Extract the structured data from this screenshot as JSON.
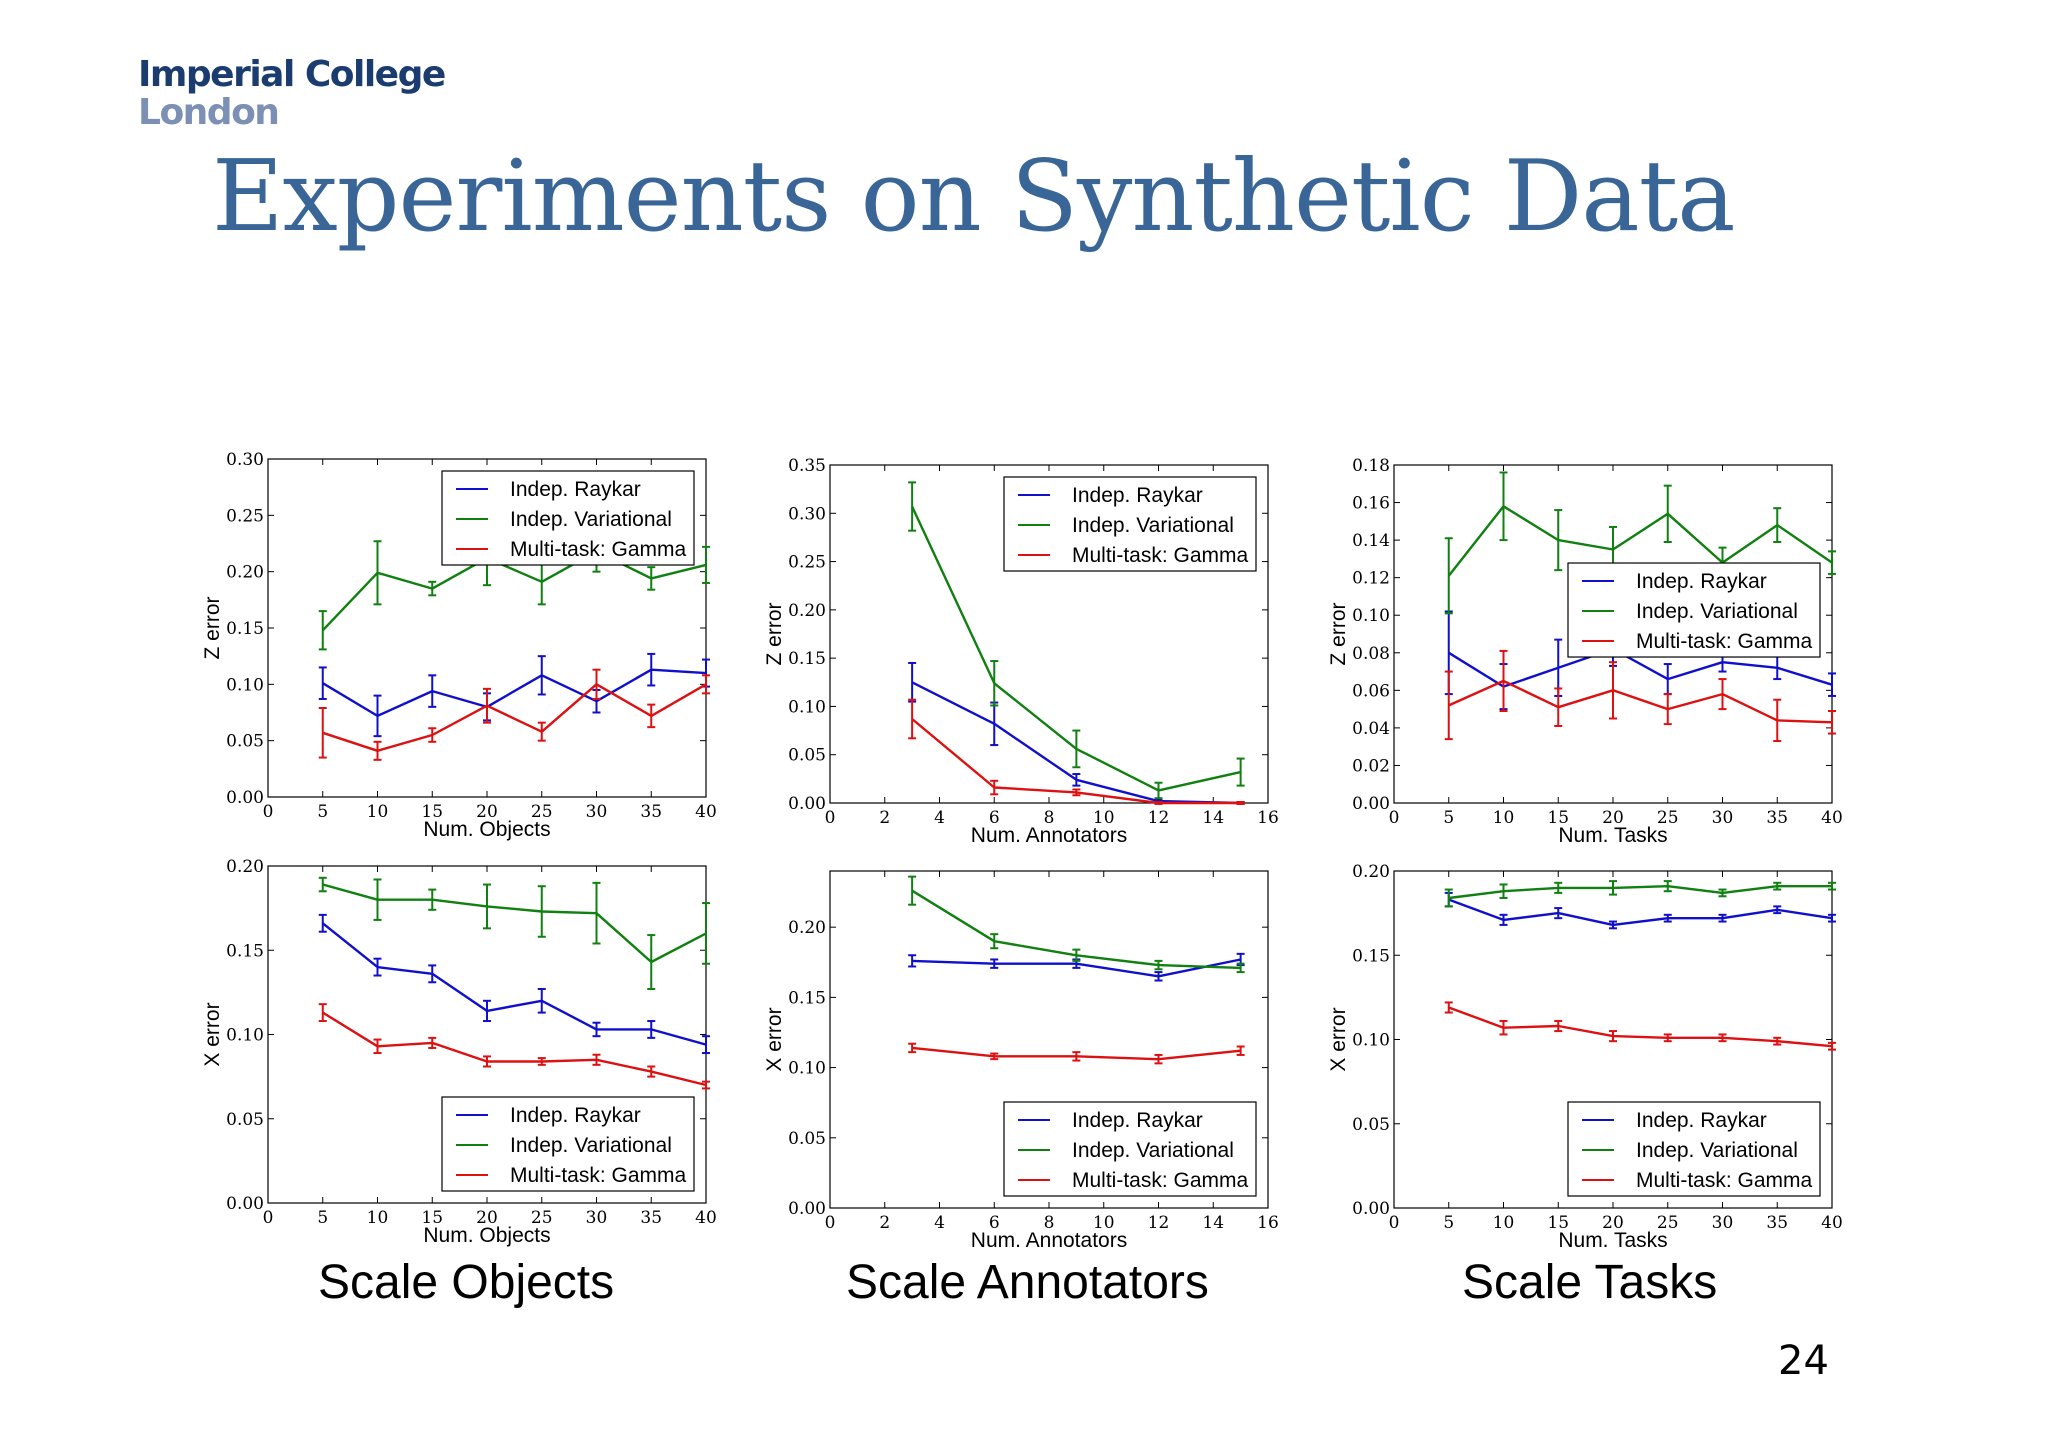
{
  "logo": {
    "line1": "Imperial College",
    "line2": "London"
  },
  "slide": {
    "title": "Experiments on Synthetic Data",
    "page_number": "24"
  },
  "captions": [
    "Scale Objects",
    "Scale Annotators",
    "Scale Tasks"
  ],
  "colors": {
    "raykar": "#1010cc",
    "variational": "#108010",
    "gamma": "#dd1111"
  },
  "chart_data": [
    {
      "type": "line",
      "xlabel": "Num. Objects",
      "ylabel": "Z error",
      "xlim": [
        0,
        40
      ],
      "ylim": [
        0,
        0.3
      ],
      "xticks": [
        "0",
        "5",
        "10",
        "15",
        "20",
        "25",
        "30",
        "35",
        "40"
      ],
      "yticks": [
        "0.00",
        "0.05",
        "0.10",
        "0.15",
        "0.20",
        "0.25",
        "0.30"
      ],
      "legend": "upper-right",
      "x": [
        5,
        10,
        15,
        20,
        25,
        30,
        35,
        40
      ],
      "series": [
        {
          "name": "Indep. Raykar",
          "values": [
            0.101,
            0.072,
            0.094,
            0.08,
            0.108,
            0.085,
            0.113,
            0.11
          ],
          "errors": [
            0.014,
            0.018,
            0.014,
            0.012,
            0.017,
            0.01,
            0.014,
            0.012
          ]
        },
        {
          "name": "Indep. Variational",
          "values": [
            0.148,
            0.199,
            0.185,
            0.212,
            0.191,
            0.218,
            0.194,
            0.206
          ],
          "errors": [
            0.017,
            0.028,
            0.006,
            0.024,
            0.02,
            0.018,
            0.01,
            0.016
          ]
        },
        {
          "name": "Multi-task: Gamma",
          "values": [
            0.057,
            0.041,
            0.055,
            0.081,
            0.058,
            0.1,
            0.072,
            0.1
          ],
          "errors": [
            0.022,
            0.008,
            0.006,
            0.015,
            0.008,
            0.013,
            0.01,
            0.008
          ]
        }
      ]
    },
    {
      "type": "line",
      "xlabel": "Num. Annotators",
      "ylabel": "Z error",
      "xlim": [
        0,
        16
      ],
      "ylim": [
        0,
        0.35
      ],
      "xticks": [
        "0",
        "2",
        "4",
        "6",
        "8",
        "10",
        "12",
        "14",
        "16"
      ],
      "yticks": [
        "0.00",
        "0.05",
        "0.10",
        "0.15",
        "0.20",
        "0.25",
        "0.30",
        "0.35"
      ],
      "legend": "upper-right",
      "x": [
        3,
        6,
        9,
        12,
        15
      ],
      "series": [
        {
          "name": "Indep. Raykar",
          "values": [
            0.125,
            0.082,
            0.024,
            0.002,
            0.0
          ],
          "errors": [
            0.02,
            0.022,
            0.006,
            0.002,
            0.001
          ]
        },
        {
          "name": "Indep. Variational",
          "values": [
            0.307,
            0.124,
            0.056,
            0.013,
            0.032
          ],
          "errors": [
            0.025,
            0.023,
            0.019,
            0.008,
            0.014
          ]
        },
        {
          "name": "Multi-task: Gamma",
          "values": [
            0.087,
            0.016,
            0.011,
            0.0,
            0.0
          ],
          "errors": [
            0.02,
            0.007,
            0.003,
            0.001,
            0.001
          ]
        }
      ]
    },
    {
      "type": "line",
      "xlabel": "Num. Tasks",
      "ylabel": "Z error",
      "xlim": [
        0,
        40
      ],
      "ylim": [
        0,
        0.18
      ],
      "xticks": [
        "0",
        "5",
        "10",
        "15",
        "20",
        "25",
        "30",
        "35",
        "40"
      ],
      "yticks": [
        "0.00",
        "0.02",
        "0.04",
        "0.06",
        "0.08",
        "0.10",
        "0.12",
        "0.14",
        "0.16",
        "0.18"
      ],
      "legend": "center-right",
      "x": [
        5,
        10,
        15,
        20,
        25,
        30,
        35,
        40
      ],
      "series": [
        {
          "name": "Indep. Raykar",
          "values": [
            0.08,
            0.062,
            0.072,
            0.082,
            0.066,
            0.075,
            0.072,
            0.063
          ],
          "errors": [
            0.022,
            0.012,
            0.015,
            0.009,
            0.008,
            0.005,
            0.006,
            0.006
          ]
        },
        {
          "name": "Indep. Variational",
          "values": [
            0.121,
            0.158,
            0.14,
            0.135,
            0.154,
            0.128,
            0.148,
            0.128
          ],
          "errors": [
            0.02,
            0.018,
            0.016,
            0.012,
            0.015,
            0.008,
            0.009,
            0.006
          ]
        },
        {
          "name": "Multi-task: Gamma",
          "values": [
            0.052,
            0.065,
            0.051,
            0.06,
            0.05,
            0.058,
            0.044,
            0.043
          ],
          "errors": [
            0.018,
            0.016,
            0.01,
            0.015,
            0.008,
            0.008,
            0.011,
            0.006
          ]
        }
      ]
    },
    {
      "type": "line",
      "xlabel": "Num. Objects",
      "ylabel": "X error",
      "xlim": [
        0,
        40
      ],
      "ylim": [
        0,
        0.2
      ],
      "xticks": [
        "0",
        "5",
        "10",
        "15",
        "20",
        "25",
        "30",
        "35",
        "40"
      ],
      "yticks": [
        "0.00",
        "0.05",
        "0.10",
        "0.15",
        "0.20"
      ],
      "legend": "lower-right",
      "x": [
        5,
        10,
        15,
        20,
        25,
        30,
        35,
        40
      ],
      "series": [
        {
          "name": "Indep. Raykar",
          "values": [
            0.166,
            0.14,
            0.136,
            0.114,
            0.12,
            0.103,
            0.103,
            0.094
          ],
          "errors": [
            0.005,
            0.005,
            0.005,
            0.006,
            0.007,
            0.004,
            0.005,
            0.005
          ]
        },
        {
          "name": "Indep. Variational",
          "values": [
            0.189,
            0.18,
            0.18,
            0.176,
            0.173,
            0.172,
            0.143,
            0.16
          ],
          "errors": [
            0.004,
            0.012,
            0.006,
            0.013,
            0.015,
            0.018,
            0.016,
            0.018
          ]
        },
        {
          "name": "Multi-task: Gamma",
          "values": [
            0.113,
            0.093,
            0.095,
            0.084,
            0.084,
            0.085,
            0.078,
            0.07
          ],
          "errors": [
            0.005,
            0.004,
            0.003,
            0.003,
            0.002,
            0.003,
            0.003,
            0.002
          ]
        }
      ]
    },
    {
      "type": "line",
      "xlabel": "Num. Annotators",
      "ylabel": "X error",
      "xlim": [
        0,
        16
      ],
      "ylim": [
        0,
        0.24
      ],
      "xticks": [
        "0",
        "2",
        "4",
        "6",
        "8",
        "10",
        "12",
        "14",
        "16"
      ],
      "yticks": [
        "0.00",
        "0.05",
        "0.10",
        "0.15",
        "0.20"
      ],
      "legend": "lower-right",
      "x": [
        3,
        6,
        9,
        12,
        15
      ],
      "series": [
        {
          "name": "Indep. Raykar",
          "values": [
            0.176,
            0.174,
            0.174,
            0.165,
            0.177
          ],
          "errors": [
            0.004,
            0.003,
            0.003,
            0.003,
            0.004
          ]
        },
        {
          "name": "Indep. Variational",
          "values": [
            0.226,
            0.19,
            0.18,
            0.173,
            0.171
          ],
          "errors": [
            0.01,
            0.005,
            0.004,
            0.003,
            0.003
          ]
        },
        {
          "name": "Multi-task: Gamma",
          "values": [
            0.114,
            0.108,
            0.108,
            0.106,
            0.112
          ],
          "errors": [
            0.003,
            0.002,
            0.003,
            0.003,
            0.003
          ]
        }
      ]
    },
    {
      "type": "line",
      "xlabel": "Num. Tasks",
      "ylabel": "X error",
      "xlim": [
        0,
        40
      ],
      "ylim": [
        0,
        0.2
      ],
      "xticks": [
        "0",
        "5",
        "10",
        "15",
        "20",
        "25",
        "30",
        "35",
        "40"
      ],
      "yticks": [
        "0.00",
        "0.05",
        "0.10",
        "0.15",
        "0.20"
      ],
      "legend": "lower-right",
      "x": [
        5,
        10,
        15,
        20,
        25,
        30,
        35,
        40
      ],
      "series": [
        {
          "name": "Indep. Raykar",
          "values": [
            0.183,
            0.171,
            0.175,
            0.168,
            0.172,
            0.172,
            0.177,
            0.172
          ],
          "errors": [
            0.004,
            0.003,
            0.003,
            0.002,
            0.002,
            0.002,
            0.002,
            0.002
          ]
        },
        {
          "name": "Indep. Variational",
          "values": [
            0.184,
            0.188,
            0.19,
            0.19,
            0.191,
            0.187,
            0.191,
            0.191
          ],
          "errors": [
            0.005,
            0.004,
            0.003,
            0.004,
            0.003,
            0.002,
            0.002,
            0.002
          ]
        },
        {
          "name": "Multi-task: Gamma",
          "values": [
            0.119,
            0.107,
            0.108,
            0.102,
            0.101,
            0.101,
            0.099,
            0.096
          ],
          "errors": [
            0.003,
            0.004,
            0.003,
            0.003,
            0.002,
            0.002,
            0.002,
            0.002
          ]
        }
      ]
    }
  ]
}
